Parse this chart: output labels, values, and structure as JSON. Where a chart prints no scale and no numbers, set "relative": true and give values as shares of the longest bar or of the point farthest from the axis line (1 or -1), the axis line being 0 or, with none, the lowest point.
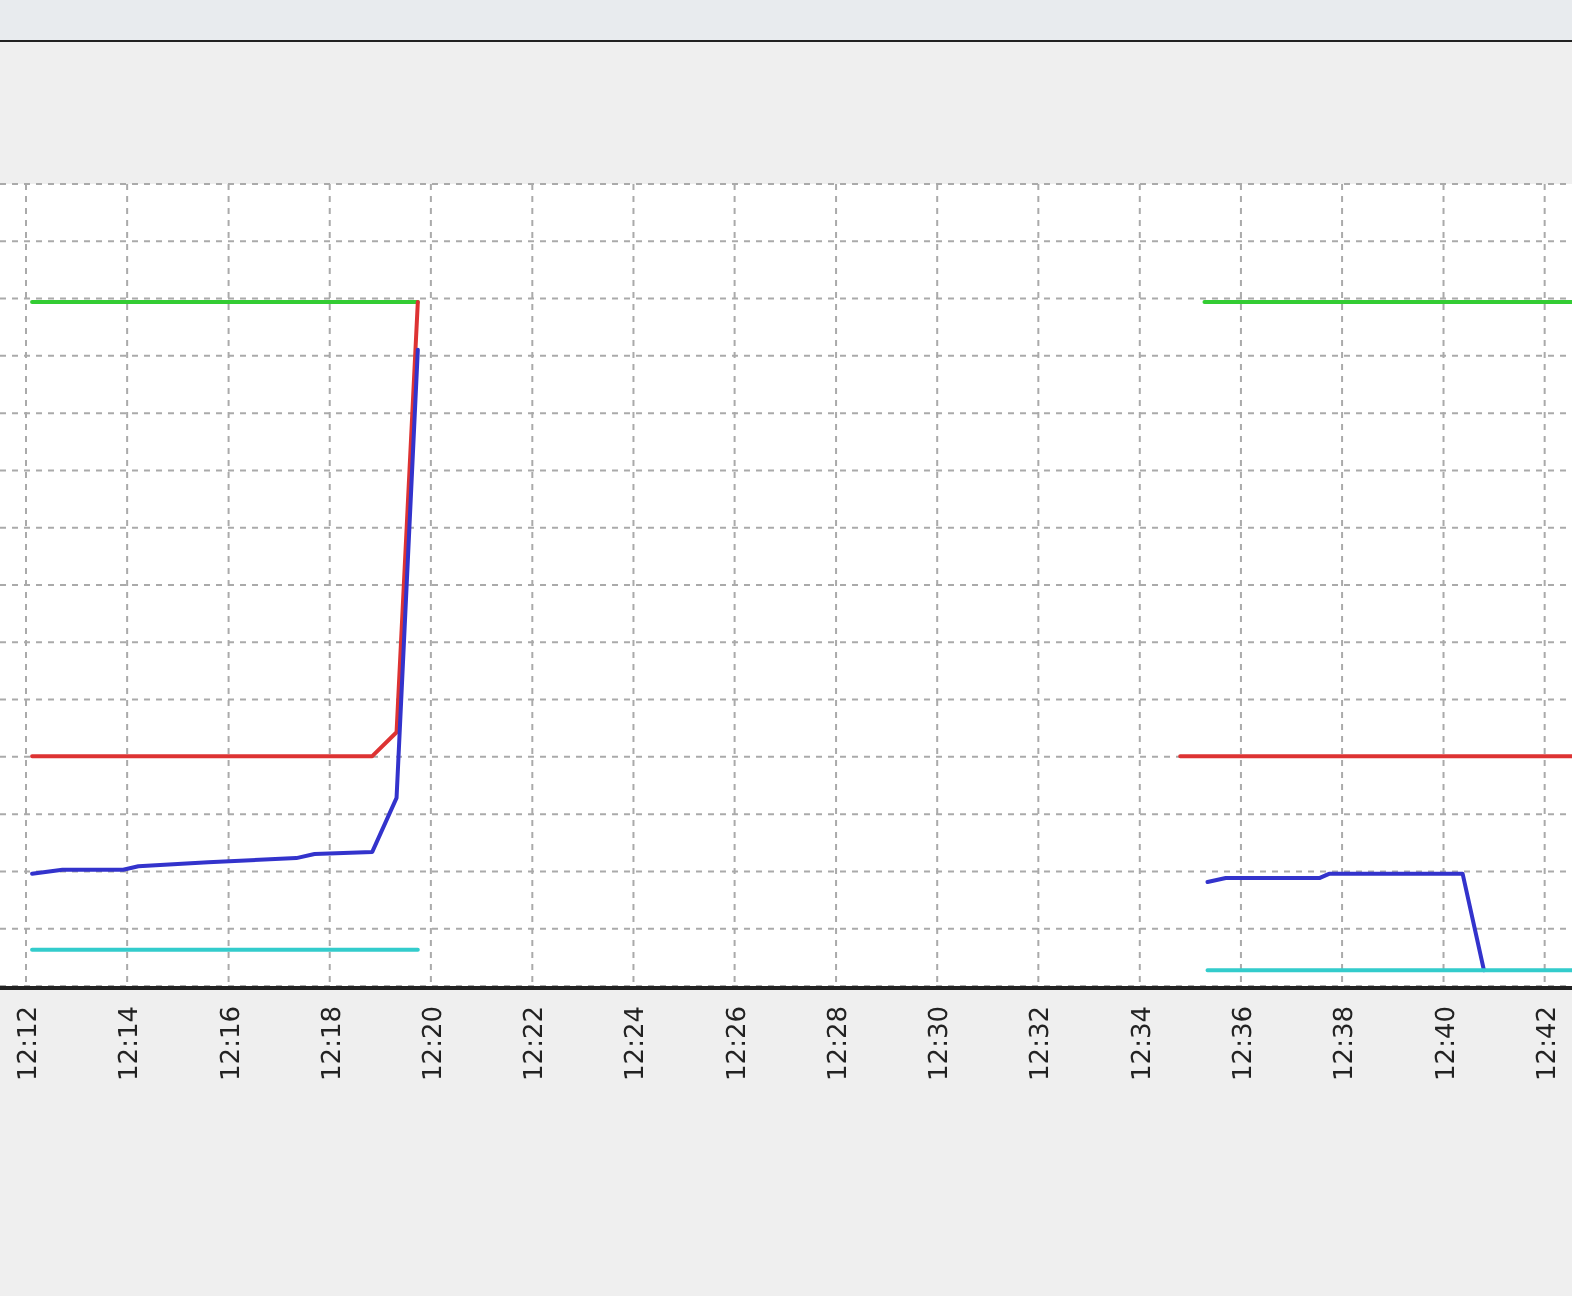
{
  "chart_data": {
    "type": "line",
    "relative": true,
    "grid": true,
    "xlim": [
      12.2,
      12.709
    ],
    "xticks": [
      {
        "value": 12.2,
        "label": "12:12"
      },
      {
        "value": 12.2333,
        "label": "12:14"
      },
      {
        "value": 12.2667,
        "label": "12:16"
      },
      {
        "value": 12.3,
        "label": "12:18"
      },
      {
        "value": 12.3333,
        "label": "12:20"
      },
      {
        "value": 12.3667,
        "label": "12:22"
      },
      {
        "value": 12.4,
        "label": "12:24"
      },
      {
        "value": 12.4333,
        "label": "12:26"
      },
      {
        "value": 12.4667,
        "label": "12:28"
      },
      {
        "value": 12.5,
        "label": "12:30"
      },
      {
        "value": 12.5333,
        "label": "12:32"
      },
      {
        "value": 12.5667,
        "label": "12:34"
      },
      {
        "value": 12.6,
        "label": "12:36"
      },
      {
        "value": 12.6333,
        "label": "12:38"
      },
      {
        "value": 12.6667,
        "label": "12:40"
      },
      {
        "value": 12.7,
        "label": "12:42"
      }
    ],
    "series": [
      {
        "color": "#33cc33",
        "x": [
          12.202,
          12.329,
          12.45,
          12.588,
          12.709
        ],
        "values": [
          1,
          1,
          null,
          1,
          1
        ]
      },
      {
        "color": "#dd3333",
        "x": [
          12.202,
          12.314,
          12.322,
          12.329,
          12.45,
          12.58,
          12.709
        ],
        "values": [
          0.336,
          0.336,
          0.371,
          1,
          null,
          0.336,
          0.336
        ]
      },
      {
        "color": "#3333cc",
        "x": [
          12.202,
          12.212,
          12.232,
          12.237,
          12.26,
          12.289,
          12.295,
          12.314,
          12.322,
          12.329,
          12.45,
          12.589,
          12.595,
          12.626,
          12.629,
          12.673,
          12.68
        ],
        "values": [
          0.164,
          0.17,
          0.17,
          0.175,
          0.181,
          0.187,
          0.193,
          0.196,
          0.275,
          0.93,
          null,
          0.152,
          0.158,
          0.158,
          0.164,
          0.164,
          0.023
        ]
      },
      {
        "color": "#33cccc",
        "x": [
          12.202,
          12.329,
          12.45,
          12.589,
          12.709
        ],
        "values": [
          0.053,
          0.053,
          null,
          0.023,
          0.023
        ]
      }
    ]
  }
}
